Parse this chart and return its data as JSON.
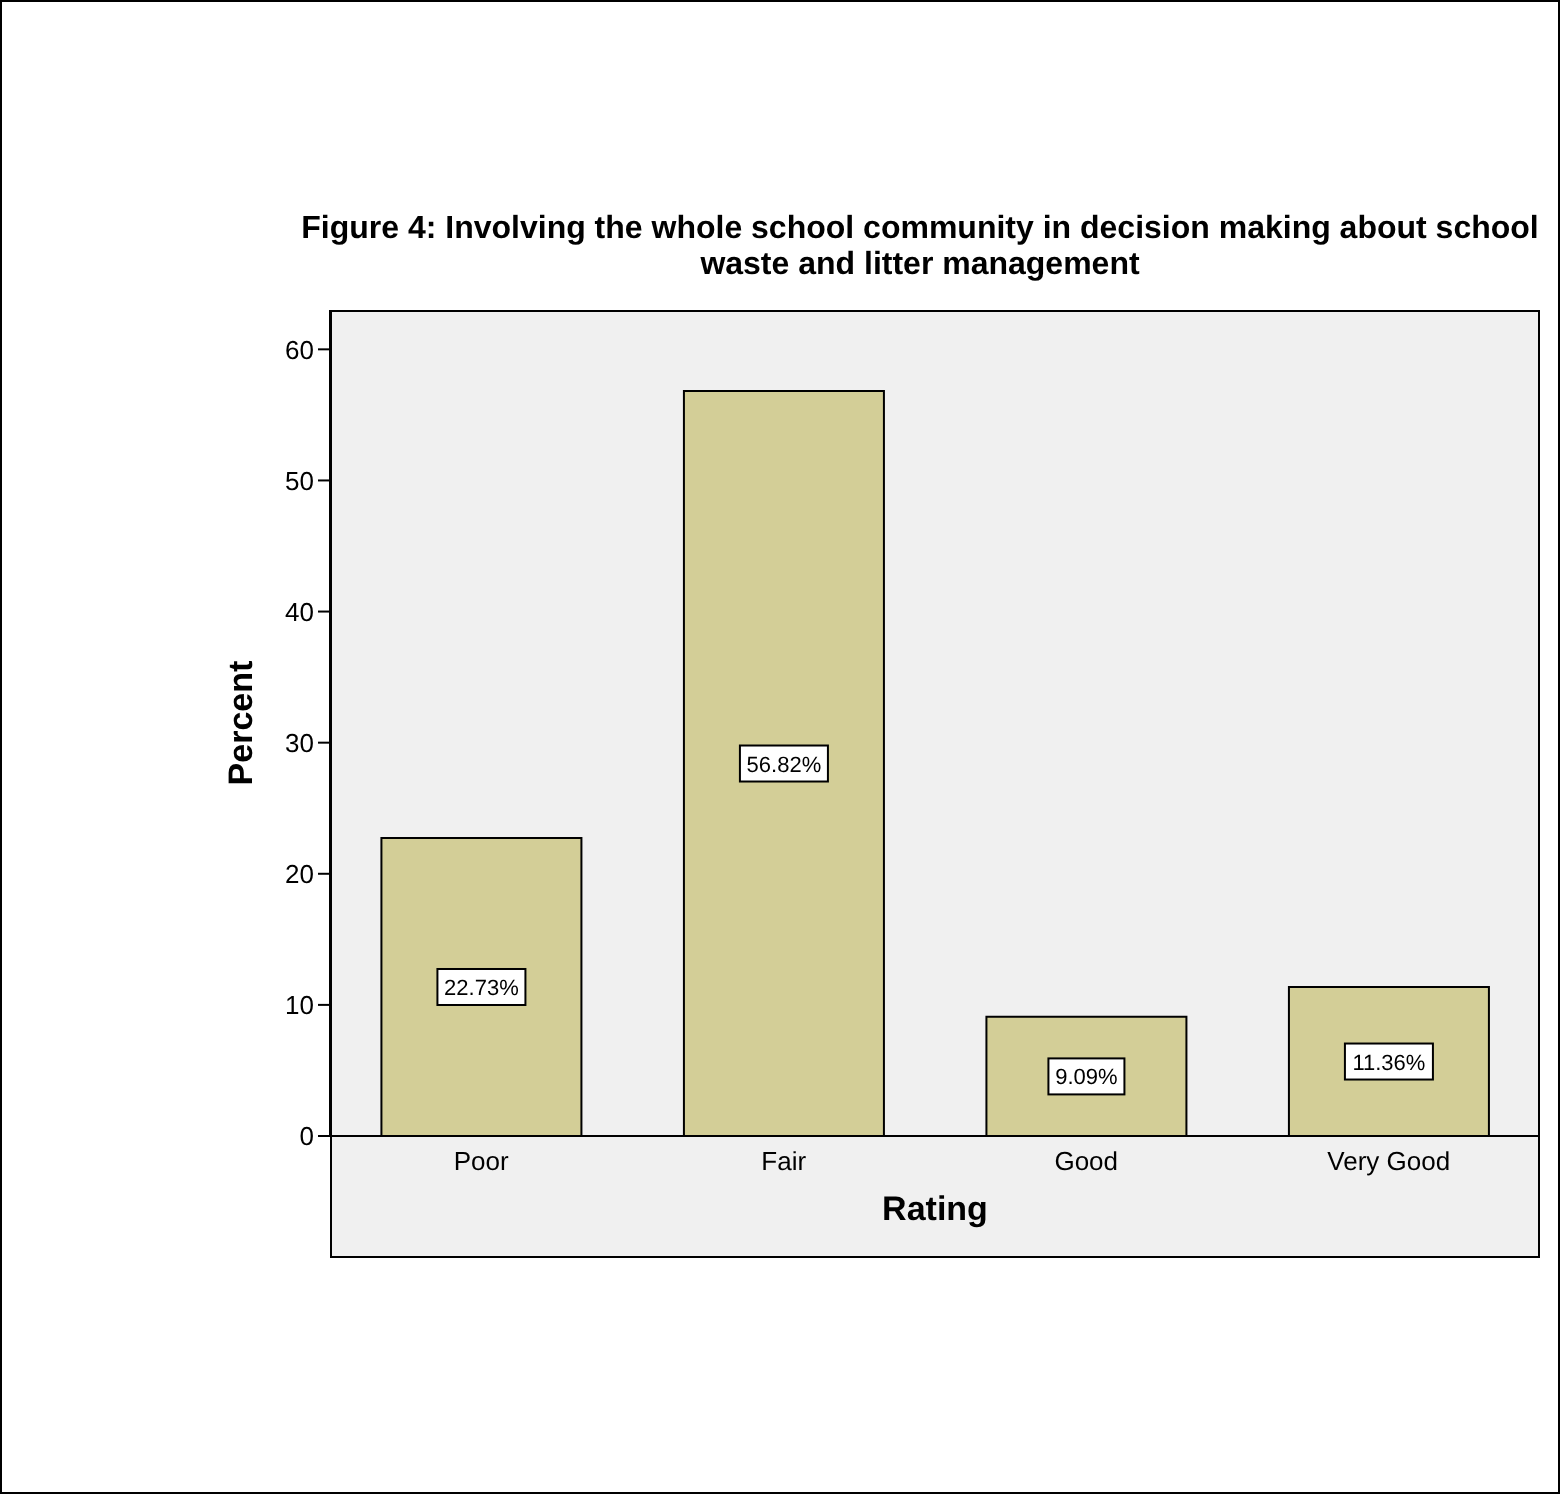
{
  "chart_data": {
    "type": "bar",
    "title": "Figure 4: Involving the whole school community in decision making about school waste and litter management",
    "xlabel": "Rating",
    "ylabel": "Percent",
    "categories": [
      "Poor",
      "Fair",
      "Good",
      "Very Good"
    ],
    "values": [
      22.73,
      56.82,
      9.09,
      11.36
    ],
    "value_labels": [
      "22.73%",
      "56.82%",
      "9.09%",
      "11.36%"
    ],
    "color": "#d3ce97",
    "ylim": [
      0,
      63
    ],
    "yticks": [
      0,
      10,
      20,
      30,
      40,
      50,
      60
    ],
    "legend": false
  }
}
